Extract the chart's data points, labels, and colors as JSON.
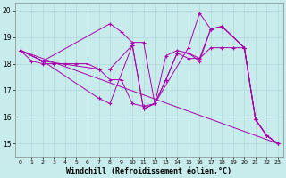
{
  "bg_color": "#c8ecec",
  "line_color": "#aa00aa",
  "grid_color": "#b0d8d8",
  "xlabel": "Windchill (Refroidissement éolien,°C)",
  "ylim": [
    14.5,
    20.3
  ],
  "xlim": [
    -0.5,
    23.5
  ],
  "yticks": [
    15,
    16,
    17,
    18,
    19,
    20
  ],
  "xticks": [
    0,
    1,
    2,
    3,
    4,
    5,
    6,
    7,
    8,
    9,
    10,
    11,
    12,
    13,
    14,
    15,
    16,
    17,
    18,
    19,
    20,
    21,
    22,
    23
  ],
  "series": [
    {
      "x": [
        0,
        1,
        2,
        3,
        4,
        5,
        6,
        7,
        8,
        9,
        10,
        11,
        12,
        13,
        14,
        15,
        16,
        17,
        18,
        19,
        20,
        21,
        22,
        23
      ],
      "y": [
        18.5,
        18.1,
        18.0,
        18.0,
        18.0,
        18.0,
        18.0,
        17.8,
        17.4,
        17.4,
        16.5,
        16.4,
        16.5,
        17.4,
        18.4,
        18.2,
        18.2,
        18.6,
        18.6,
        18.6,
        18.6,
        15.9,
        15.3,
        15.0
      ],
      "has_markers": true
    },
    {
      "x": [
        0,
        2,
        8,
        9,
        10,
        11,
        12,
        15,
        16,
        17,
        18,
        20,
        21,
        22,
        23
      ],
      "y": [
        18.5,
        18.1,
        19.5,
        19.2,
        18.8,
        18.8,
        16.5,
        18.6,
        19.9,
        19.3,
        19.4,
        18.6,
        15.9,
        15.3,
        15.0
      ],
      "has_markers": true
    },
    {
      "x": [
        0,
        2,
        7,
        8,
        10,
        11,
        12,
        13,
        14,
        15,
        16,
        17,
        18,
        20,
        21,
        22,
        23
      ],
      "y": [
        18.5,
        18.1,
        17.8,
        17.8,
        18.7,
        16.3,
        16.5,
        18.3,
        18.5,
        18.4,
        18.1,
        19.3,
        19.4,
        18.6,
        15.9,
        15.3,
        15.0
      ],
      "has_markers": true
    },
    {
      "x": [
        0,
        2,
        7,
        8,
        10,
        11,
        12,
        13,
        14,
        15,
        16,
        17,
        18,
        20,
        21,
        22,
        23
      ],
      "y": [
        18.5,
        18.1,
        16.7,
        16.5,
        18.7,
        16.3,
        16.5,
        17.4,
        18.4,
        18.4,
        18.2,
        19.3,
        19.4,
        18.6,
        15.9,
        15.3,
        15.0
      ],
      "has_markers": true
    },
    {
      "x": [
        0,
        23
      ],
      "y": [
        18.5,
        15.0
      ],
      "has_markers": false
    }
  ],
  "xlabel_fontsize": 6,
  "tick_fontsize": 5.5
}
